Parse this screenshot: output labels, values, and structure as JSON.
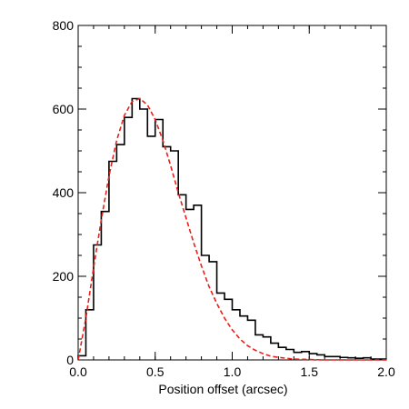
{
  "chart_data": {
    "type": "line",
    "xlabel": "Position offset (arcsec)",
    "ylabel": "",
    "xlim": [
      0.0,
      2.0
    ],
    "ylim": [
      0,
      800
    ],
    "xticks": [
      0.0,
      0.5,
      1.0,
      1.5,
      2.0
    ],
    "xtick_labels": [
      "0.0",
      "0.5",
      "1.0",
      "1.5",
      "2.0"
    ],
    "yticks": [
      0,
      200,
      400,
      600,
      800
    ],
    "ytick_labels": [
      "0",
      "200",
      "400",
      "600",
      "800"
    ],
    "grid": false,
    "series": [
      {
        "style": "step",
        "color": "#000000",
        "bin_width": 0.05,
        "bin_edges_start": 0.0,
        "values": [
          10,
          120,
          275,
          355,
          475,
          515,
          580,
          625,
          600,
          535,
          575,
          510,
          500,
          395,
          360,
          370,
          250,
          235,
          160,
          145,
          120,
          105,
          95,
          60,
          55,
          40,
          30,
          25,
          18,
          20,
          15,
          12,
          8,
          8,
          6,
          5,
          4,
          5,
          2,
          2
        ]
      },
      {
        "style": "dashed",
        "color": "#e8201b",
        "x": [
          0.0,
          0.05,
          0.1,
          0.15,
          0.2,
          0.25,
          0.3,
          0.35,
          0.4,
          0.45,
          0.5,
          0.55,
          0.6,
          0.65,
          0.7,
          0.75,
          0.8,
          0.85,
          0.9,
          0.95,
          1.0,
          1.05,
          1.1,
          1.15,
          1.2,
          1.25,
          1.3,
          1.35,
          1.4,
          1.5,
          1.6,
          1.7,
          1.8,
          1.9,
          2.0
        ],
        "y": [
          0,
          100,
          220,
          335,
          440,
          525,
          585,
          618,
          625,
          610,
          575,
          525,
          465,
          400,
          340,
          280,
          225,
          175,
          135,
          100,
          72,
          50,
          34,
          23,
          15,
          9,
          6,
          4,
          2,
          1,
          0,
          0,
          0,
          0,
          0
        ]
      }
    ]
  }
}
